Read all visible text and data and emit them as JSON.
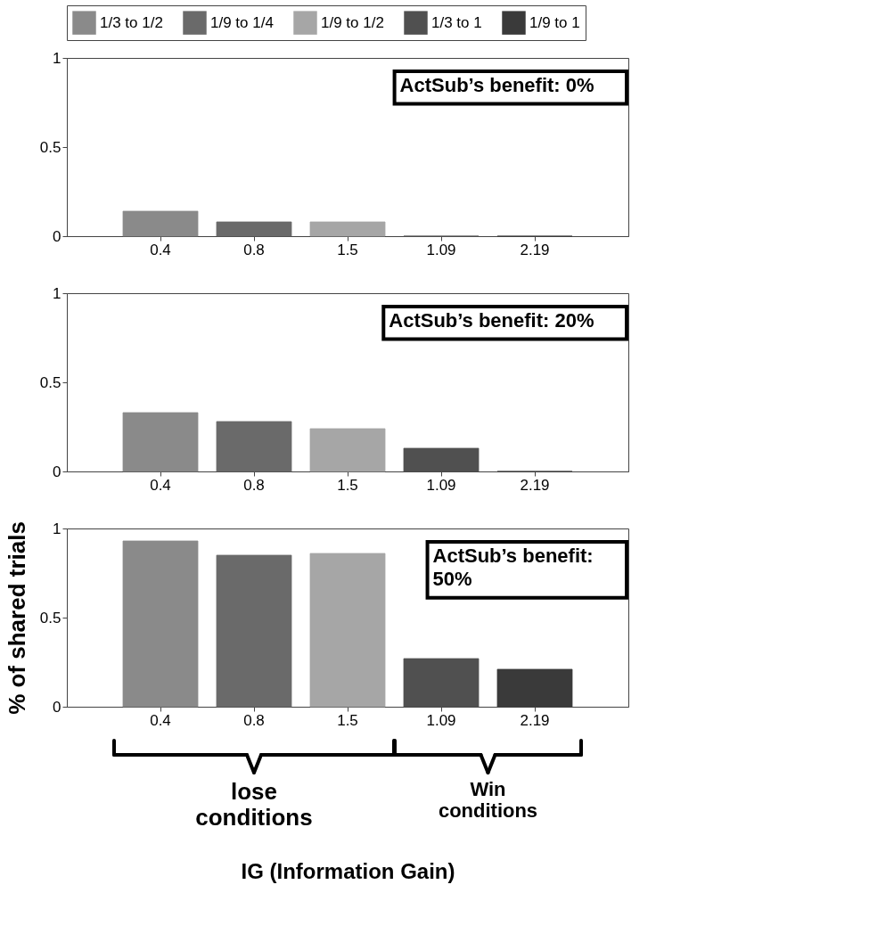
{
  "chart_data": [
    {
      "type": "bar",
      "categories": [
        "0.4",
        "0.8",
        "1.5",
        "1.09",
        "2.19"
      ],
      "series": [
        {
          "name": "1/3 to 1/2",
          "color": "#8a8a8a",
          "values": [
            0.14,
            null,
            null,
            null,
            null
          ]
        },
        {
          "name": "1/9 to 1/4",
          "color": "#6a6a6a",
          "values": [
            null,
            0.08,
            null,
            null,
            null
          ]
        },
        {
          "name": "1/9 to 1/2",
          "color": "#a6a6a6",
          "values": [
            null,
            null,
            0.08,
            null,
            null
          ]
        },
        {
          "name": "1/3 to 1",
          "color": "#505050",
          "values": [
            null,
            null,
            null,
            0,
            null
          ]
        },
        {
          "name": "1/9 to 1",
          "color": "#3a3a3a",
          "values": [
            null,
            null,
            null,
            null,
            0
          ]
        }
      ],
      "ylim": [
        0,
        1
      ],
      "yticks": [
        0,
        0.5,
        1
      ],
      "grid": false,
      "legend": "top",
      "annotations": [
        "ActSub’s benefit: 0%"
      ]
    },
    {
      "type": "bar",
      "categories": [
        "0.4",
        "0.8",
        "1.5",
        "1.09",
        "2.19"
      ],
      "series": [
        {
          "name": "1/3 to 1/2",
          "color": "#8a8a8a",
          "values": [
            0.33,
            null,
            null,
            null,
            null
          ]
        },
        {
          "name": "1/9 to 1/4",
          "color": "#6a6a6a",
          "values": [
            null,
            0.28,
            null,
            null,
            null
          ]
        },
        {
          "name": "1/9 to 1/2",
          "color": "#a6a6a6",
          "values": [
            null,
            null,
            0.24,
            null,
            null
          ]
        },
        {
          "name": "1/3 to 1",
          "color": "#505050",
          "values": [
            null,
            null,
            null,
            0.13,
            null
          ]
        },
        {
          "name": "1/9 to 1",
          "color": "#3a3a3a",
          "values": [
            null,
            null,
            null,
            null,
            0
          ]
        }
      ],
      "ylim": [
        0,
        1
      ],
      "yticks": [
        0,
        0.5,
        1
      ],
      "grid": false,
      "legend": "top",
      "annotations": [
        "ActSub’s benefit: 20%"
      ]
    },
    {
      "type": "bar",
      "categories": [
        "0.4",
        "0.8",
        "1.5",
        "1.09",
        "2.19"
      ],
      "series": [
        {
          "name": "1/3 to 1/2",
          "color": "#8a8a8a",
          "values": [
            0.93,
            null,
            null,
            null,
            null
          ]
        },
        {
          "name": "1/9 to 1/4",
          "color": "#6a6a6a",
          "values": [
            null,
            0.85,
            null,
            null,
            null
          ]
        },
        {
          "name": "1/9 to 1/2",
          "color": "#a6a6a6",
          "values": [
            null,
            null,
            0.86,
            null,
            null
          ]
        },
        {
          "name": "1/3 to 1",
          "color": "#505050",
          "values": [
            null,
            null,
            null,
            0.27,
            null
          ]
        },
        {
          "name": "1/9 to 1",
          "color": "#3a3a3a",
          "values": [
            null,
            null,
            null,
            null,
            0.21
          ]
        }
      ],
      "ylim": [
        0,
        1
      ],
      "yticks": [
        0,
        0.5,
        1
      ],
      "grid": false,
      "legend": "top",
      "xlabel": "IG (Information Gain)",
      "ylabel": "% of shared trials",
      "annotations": [
        "ActSub’s benefit:\n 50%",
        "lose\nconditions",
        "Win\nconditions"
      ]
    }
  ]
}
